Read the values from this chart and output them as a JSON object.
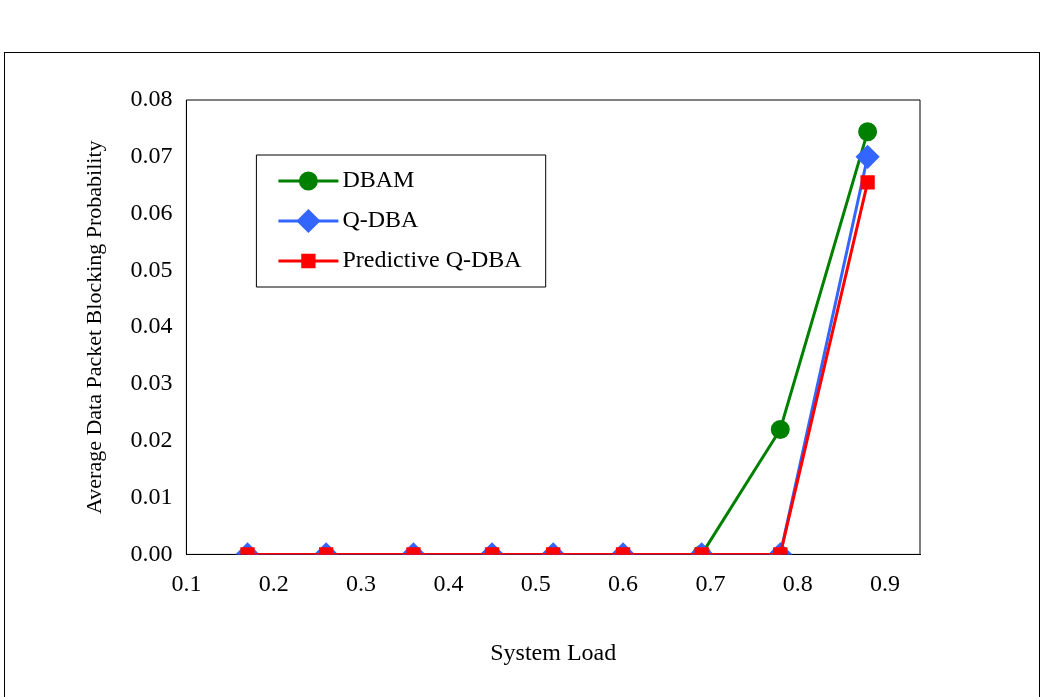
{
  "chart_data": {
    "type": "line",
    "xlabel": "System Load",
    "ylabel": "Average Data Packet Blocking Probability",
    "x": [
      0.17,
      0.26,
      0.36,
      0.45,
      0.52,
      0.6,
      0.69,
      0.78,
      0.88
    ],
    "series": [
      {
        "name": "DBAM",
        "color": "#008000",
        "marker": "circle",
        "values": [
          null,
          null,
          null,
          null,
          null,
          null,
          0,
          0.022,
          0.0744
        ]
      },
      {
        "name": "Q-DBA",
        "color": "#3366ff",
        "marker": "diamond",
        "values": [
          0,
          0,
          0,
          0,
          0,
          0,
          0,
          0,
          0.07
        ]
      },
      {
        "name": "Predictive Q-DBA",
        "color": "#ff0000",
        "marker": "square",
        "values": [
          0,
          0,
          0,
          0,
          0,
          0,
          0,
          0,
          0.0655
        ]
      }
    ],
    "xlim": [
      0.1,
      0.94
    ],
    "xticks": [
      0.1,
      0.2,
      0.3,
      0.4,
      0.5,
      0.6,
      0.7,
      0.8,
      0.9
    ],
    "ylim": [
      0,
      0.08
    ],
    "yticks": [
      {
        "value": 0,
        "label": "0.00"
      },
      {
        "value": 0.01,
        "label": "0.01"
      },
      {
        "value": 0.02,
        "label": "0.02"
      },
      {
        "value": 0.03,
        "label": "0.03"
      },
      {
        "value": 0.04,
        "label": "0.04"
      },
      {
        "value": 0.05,
        "label": "0.05"
      },
      {
        "value": 0.06,
        "label": "0.06"
      },
      {
        "value": 0.07,
        "label": "0.07"
      },
      {
        "value": 0.08,
        "label": "0.08"
      }
    ],
    "grid": false,
    "legend": "top left",
    "line_style": "solid"
  }
}
